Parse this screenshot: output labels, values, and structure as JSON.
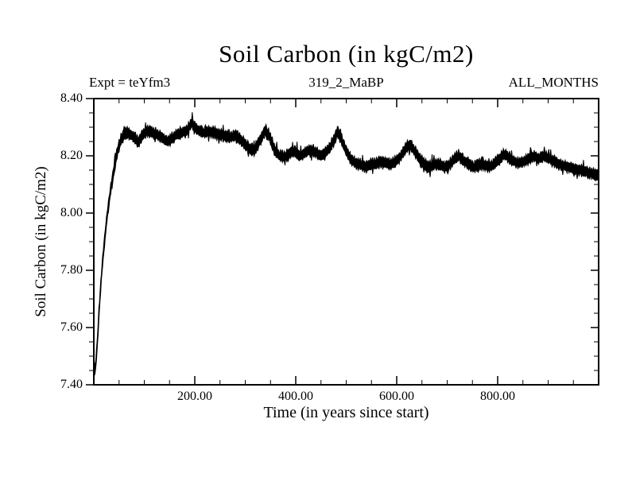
{
  "header": {
    "title": "Soil Carbon (in kgC/m2)",
    "expt_label": "Expt = teYfm3",
    "run_label": "319_2_MaBP",
    "months_label": "ALL_MONTHS"
  },
  "chart_data": {
    "type": "line",
    "title": "Soil Carbon (in kgC/m2)",
    "xlabel": "Time (in years since start)",
    "ylabel": "Soil Carbon (in kgC/m2)",
    "xlim": [
      0,
      1000
    ],
    "ylim": [
      7.4,
      8.4
    ],
    "grid": false,
    "legend": "none",
    "line_color": "#000000",
    "x_major_ticks": [
      200,
      400,
      600,
      800
    ],
    "x_major_labels": [
      "200.00",
      "400.00",
      "600.00",
      "800.00"
    ],
    "x_minor_step": 50,
    "y_major_ticks": [
      7.4,
      7.6,
      7.8,
      8.0,
      8.2,
      8.4
    ],
    "y_major_labels": [
      "7.40",
      "7.60",
      "7.80",
      "8.00",
      "8.20",
      "8.40"
    ],
    "y_minor_step": 0.05,
    "series": [
      {
        "name": "soil_carbon_all_months",
        "band_halfwidth": 0.02,
        "keypoints": [
          [
            0,
            7.5
          ],
          [
            1.5,
            7.445
          ],
          [
            4,
            7.47
          ],
          [
            8,
            7.58
          ],
          [
            12,
            7.7
          ],
          [
            16,
            7.8
          ],
          [
            20,
            7.88
          ],
          [
            25,
            7.97
          ],
          [
            30,
            8.04
          ],
          [
            35,
            8.1
          ],
          [
            40,
            8.15
          ],
          [
            45,
            8.2
          ],
          [
            50,
            8.235
          ],
          [
            55,
            8.26
          ],
          [
            60,
            8.275
          ],
          [
            65,
            8.28
          ],
          [
            72,
            8.275
          ],
          [
            80,
            8.265
          ],
          [
            88,
            8.245
          ],
          [
            95,
            8.27
          ],
          [
            105,
            8.285
          ],
          [
            115,
            8.28
          ],
          [
            125,
            8.275
          ],
          [
            135,
            8.265
          ],
          [
            145,
            8.25
          ],
          [
            155,
            8.26
          ],
          [
            165,
            8.275
          ],
          [
            175,
            8.28
          ],
          [
            185,
            8.29
          ],
          [
            195,
            8.315
          ],
          [
            200,
            8.3
          ],
          [
            210,
            8.285
          ],
          [
            220,
            8.28
          ],
          [
            232,
            8.285
          ],
          [
            245,
            8.275
          ],
          [
            258,
            8.27
          ],
          [
            270,
            8.265
          ],
          [
            282,
            8.27
          ],
          [
            295,
            8.25
          ],
          [
            308,
            8.225
          ],
          [
            318,
            8.22
          ],
          [
            328,
            8.25
          ],
          [
            340,
            8.29
          ],
          [
            348,
            8.27
          ],
          [
            358,
            8.22
          ],
          [
            368,
            8.2
          ],
          [
            378,
            8.195
          ],
          [
            388,
            8.21
          ],
          [
            398,
            8.215
          ],
          [
            408,
            8.2
          ],
          [
            418,
            8.21
          ],
          [
            428,
            8.22
          ],
          [
            438,
            8.215
          ],
          [
            448,
            8.2
          ],
          [
            458,
            8.21
          ],
          [
            468,
            8.23
          ],
          [
            476,
            8.255
          ],
          [
            483,
            8.285
          ],
          [
            490,
            8.26
          ],
          [
            498,
            8.225
          ],
          [
            508,
            8.19
          ],
          [
            518,
            8.175
          ],
          [
            528,
            8.17
          ],
          [
            538,
            8.16
          ],
          [
            548,
            8.17
          ],
          [
            558,
            8.17
          ],
          [
            568,
            8.18
          ],
          [
            578,
            8.175
          ],
          [
            588,
            8.17
          ],
          [
            598,
            8.18
          ],
          [
            608,
            8.2
          ],
          [
            618,
            8.225
          ],
          [
            627,
            8.24
          ],
          [
            635,
            8.22
          ],
          [
            645,
            8.19
          ],
          [
            655,
            8.17
          ],
          [
            665,
            8.16
          ],
          [
            675,
            8.17
          ],
          [
            685,
            8.17
          ],
          [
            695,
            8.16
          ],
          [
            705,
            8.17
          ],
          [
            715,
            8.19
          ],
          [
            723,
            8.2
          ],
          [
            732,
            8.185
          ],
          [
            742,
            8.17
          ],
          [
            752,
            8.16
          ],
          [
            762,
            8.17
          ],
          [
            772,
            8.17
          ],
          [
            782,
            8.16
          ],
          [
            792,
            8.17
          ],
          [
            802,
            8.185
          ],
          [
            812,
            8.205
          ],
          [
            822,
            8.195
          ],
          [
            832,
            8.18
          ],
          [
            842,
            8.175
          ],
          [
            852,
            8.18
          ],
          [
            862,
            8.19
          ],
          [
            872,
            8.2
          ],
          [
            882,
            8.19
          ],
          [
            892,
            8.2
          ],
          [
            902,
            8.19
          ],
          [
            912,
            8.18
          ],
          [
            922,
            8.17
          ],
          [
            932,
            8.165
          ],
          [
            942,
            8.16
          ],
          [
            952,
            8.155
          ],
          [
            962,
            8.15
          ],
          [
            972,
            8.145
          ],
          [
            982,
            8.14
          ],
          [
            992,
            8.135
          ],
          [
            1000,
            8.13
          ]
        ]
      }
    ]
  }
}
